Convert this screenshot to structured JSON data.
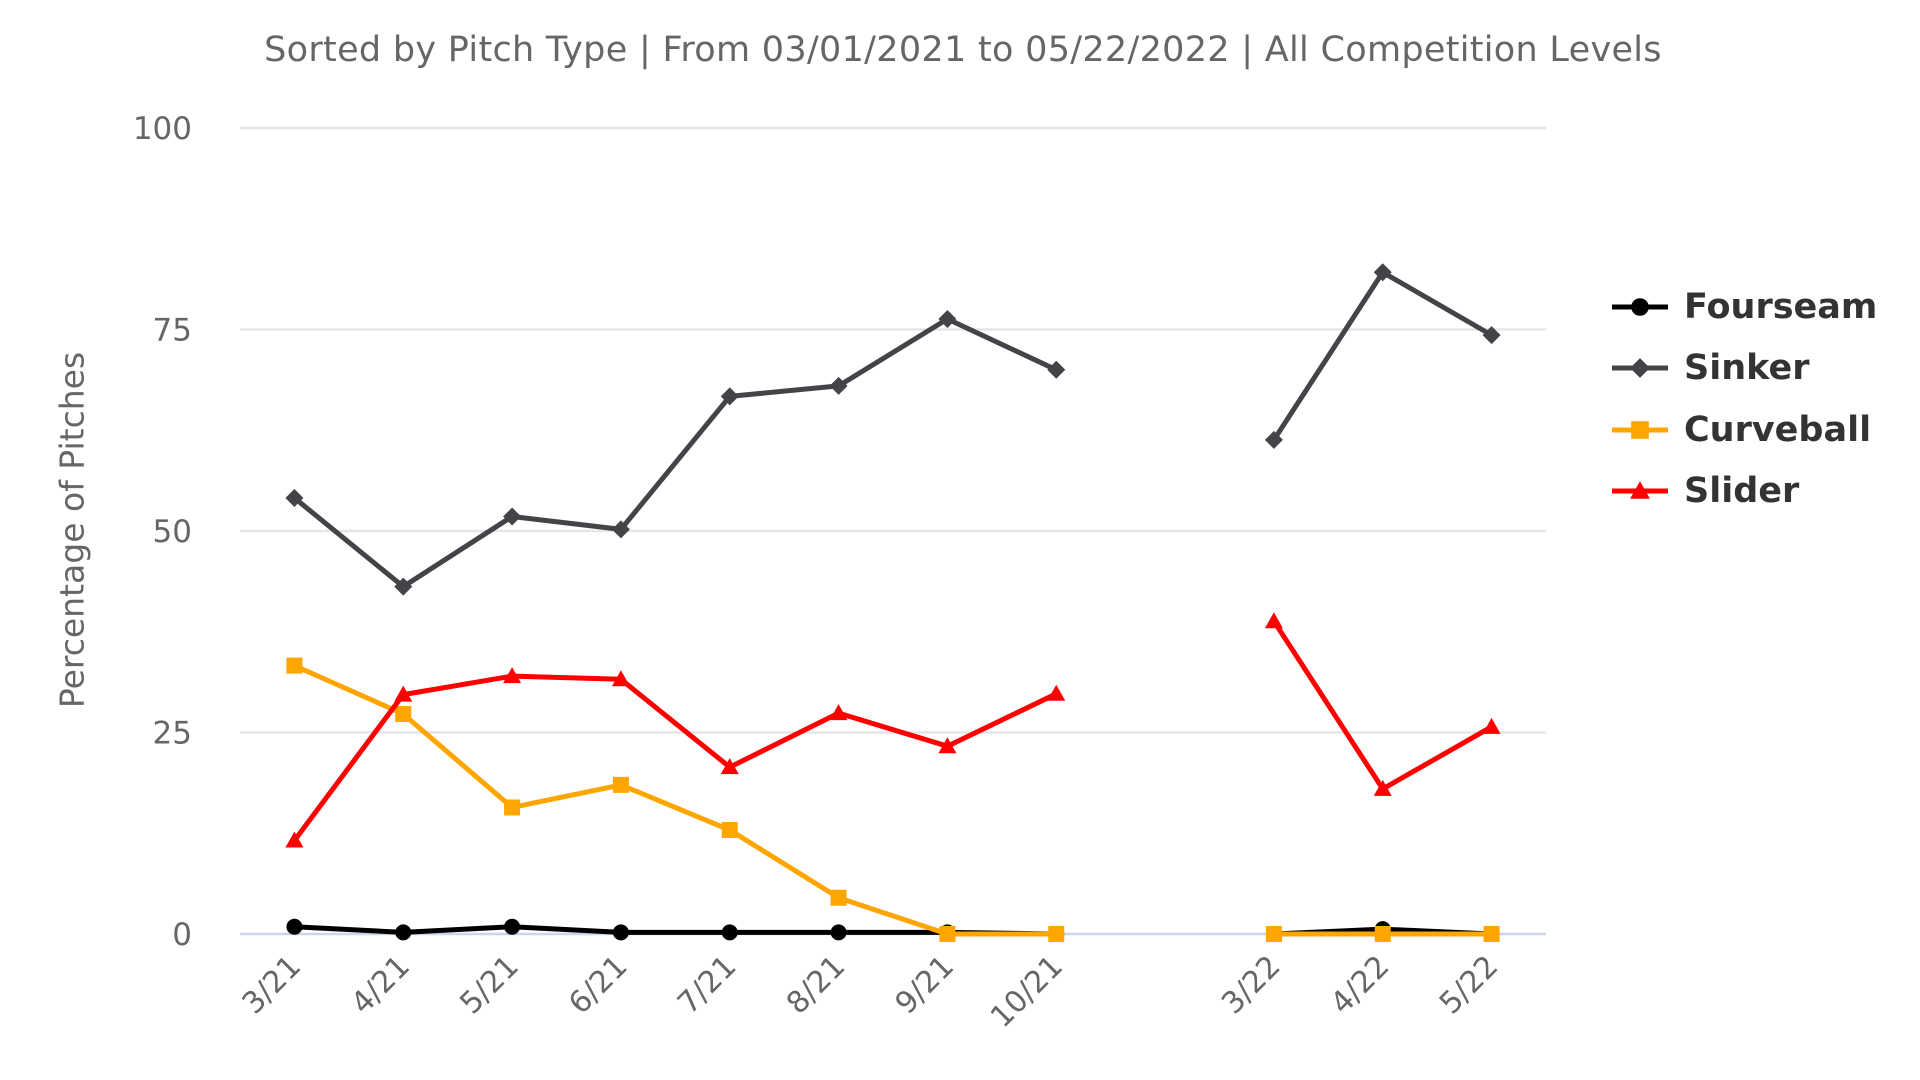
{
  "title": "Sorted by Pitch Type | From 03/01/2021 to 05/22/2022 | All Competition Levels",
  "y_axis_title": "Percentage of Pitches",
  "colors": {
    "gridline": "#e6e6e6",
    "zero_line": "#ccd6eb",
    "tick_text": "#666666",
    "legend_text": "#333333"
  },
  "legend": [
    {
      "name": "Fourseam",
      "color": "#000000",
      "marker": "circle"
    },
    {
      "name": "Sinker",
      "color": "#434348",
      "marker": "diamond"
    },
    {
      "name": "Curveball",
      "color": "#ffa500",
      "marker": "square"
    },
    {
      "name": "Slider",
      "color": "#ff0000",
      "marker": "triangle"
    }
  ],
  "chart_data": {
    "type": "line",
    "title": "Sorted by Pitch Type | From 03/01/2021 to 05/22/2022 | All Competition Levels",
    "xlabel": "",
    "ylabel": "Percentage of Pitches",
    "ylim": [
      0,
      100
    ],
    "yticks": [
      0,
      25,
      50,
      75,
      100
    ],
    "grid": true,
    "legend_position": "right",
    "categories": [
      "3/21",
      "4/21",
      "5/21",
      "6/21",
      "7/21",
      "8/21",
      "9/21",
      "10/21",
      "",
      "3/22",
      "4/22",
      "5/22"
    ],
    "series": [
      {
        "name": "Fourseam",
        "color": "#000000",
        "marker": "circle",
        "values": [
          0.9,
          0.2,
          0.9,
          0.2,
          0.2,
          0.2,
          0.2,
          0,
          null,
          0,
          0.6,
          0
        ]
      },
      {
        "name": "Sinker",
        "color": "#434348",
        "marker": "diamond",
        "values": [
          54.1,
          43.1,
          51.8,
          50.2,
          66.7,
          68.0,
          76.3,
          70.0,
          null,
          61.3,
          82.1,
          74.3
        ]
      },
      {
        "name": "Curveball",
        "color": "#ffa500",
        "marker": "square",
        "values": [
          33.3,
          27.3,
          15.7,
          18.5,
          12.9,
          4.5,
          0,
          0,
          null,
          0,
          0,
          0
        ]
      },
      {
        "name": "Slider",
        "color": "#ff0000",
        "marker": "triangle",
        "values": [
          11.6,
          29.7,
          32.0,
          31.6,
          20.7,
          27.4,
          23.3,
          29.8,
          null,
          38.8,
          18.0,
          25.7
        ]
      }
    ]
  }
}
